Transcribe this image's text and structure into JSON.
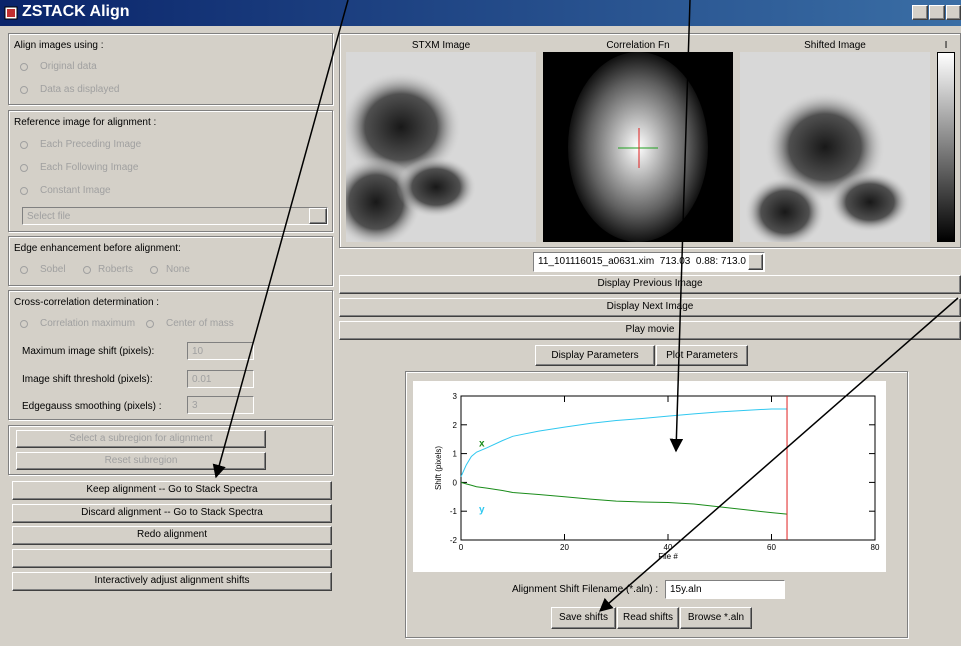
{
  "window": {
    "title": "ZSTACK Align"
  },
  "align_using": {
    "label": "Align images using :",
    "options": [
      "Original data",
      "Data as displayed"
    ]
  },
  "reference": {
    "label": "Reference image for alignment :",
    "options": [
      "Each Preceding Image",
      "Each Following Image",
      "Constant Image"
    ],
    "file_select": "Select file"
  },
  "edge": {
    "label": "Edge enhancement before alignment:",
    "options": [
      "Sobel",
      "Roberts",
      "None"
    ]
  },
  "cross_correlation": {
    "label": "Cross-correlation determination :",
    "options": [
      "Correlation maximum",
      "Center of mass"
    ],
    "fields": [
      {
        "label": "Maximum image shift (pixels):",
        "value": 10
      },
      {
        "label": "Image shift threshold (pixels):",
        "value": 0.01
      },
      {
        "label": "Edgegauss smoothing (pixels) :",
        "value": 3
      }
    ]
  },
  "subregion_buttons": [
    "Select a subregion for alignment",
    "Reset subregion"
  ],
  "action_buttons": [
    "Keep alignment -- Go to Stack Spectra",
    "Discard alignment -- Go to Stack Spectra",
    "Redo alignment",
    "Interactively adjust alignment shifts"
  ],
  "images": {
    "labels": [
      "STXM Image",
      "Correlation Fn",
      "Shifted Image",
      "I"
    ]
  },
  "file_dropdown": "11_101116015_a0631.xim  713.03  0.88: 713.0",
  "nav_buttons": [
    "Display Previous Image",
    "Display Next Image",
    "Play movie"
  ],
  "param_buttons": [
    "Display Parameters",
    "Plot Parameters"
  ],
  "chart_data": {
    "type": "line",
    "x_label": "File #",
    "y_label": "Shift (pixels)",
    "x": [
      0,
      1,
      2,
      3,
      5,
      8,
      10,
      15,
      20,
      25,
      30,
      35,
      40,
      45,
      50,
      55,
      60,
      63
    ],
    "series": [
      {
        "name": "x",
        "color": "#30c8f0",
        "label_color": "#1a8c1a",
        "values": [
          0.2,
          0.6,
          0.9,
          1.05,
          1.2,
          1.45,
          1.6,
          1.78,
          1.92,
          2.05,
          2.15,
          2.22,
          2.3,
          2.38,
          2.45,
          2.5,
          2.55,
          2.55
        ]
      },
      {
        "name": "y",
        "color": "#1a8c1a",
        "label_color": "#30c8f0",
        "values": [
          0,
          -0.05,
          -0.1,
          -0.15,
          -0.2,
          -0.28,
          -0.35,
          -0.42,
          -0.5,
          -0.58,
          -0.65,
          -0.68,
          -0.7,
          -0.75,
          -0.85,
          -0.95,
          -1.05,
          -1.1
        ]
      }
    ],
    "cursor_x": 63,
    "cursor_color": "#e02020",
    "xlim": [
      0,
      80
    ],
    "xticks": [
      0,
      20,
      40,
      60,
      80
    ],
    "ylim": [
      -2,
      3
    ],
    "yticks": [
      -2,
      -1,
      0,
      1,
      2,
      3
    ]
  },
  "filename": {
    "label": "Alignment Shift Filename (*.aln) :",
    "value": "15y.aln"
  },
  "file_buttons": [
    "Save shifts",
    "Read shifts",
    "Browse *.aln"
  ]
}
